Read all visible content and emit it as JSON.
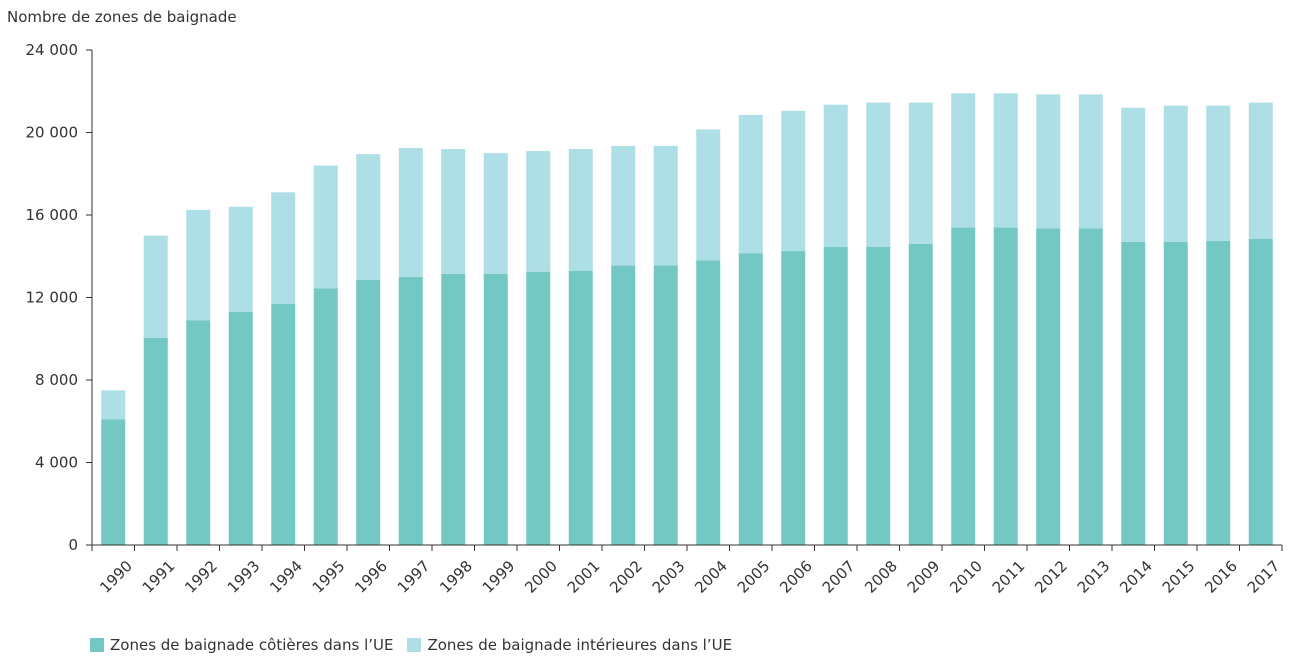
{
  "chart_data": {
    "type": "bar",
    "stacked": true,
    "title": "",
    "ylabel": "Nombre de zones de baignade",
    "xlabel": "",
    "ylim": [
      0,
      24000
    ],
    "yticks": [
      0,
      4000,
      8000,
      12000,
      16000,
      20000,
      24000
    ],
    "ytick_labels": [
      "0",
      "4 000",
      "8 000",
      "12 000",
      "16 000",
      "20 000",
      "24 000"
    ],
    "grid": false,
    "legend_position": "bottom-left",
    "categories": [
      "1990",
      "1991",
      "1992",
      "1993",
      "1994",
      "1995",
      "1996",
      "1997",
      "1998",
      "1999",
      "2000",
      "2001",
      "2002",
      "2003",
      "2004",
      "2005",
      "2006",
      "2007",
      "2008",
      "2009",
      "2010",
      "2011",
      "2012",
      "2013",
      "2014",
      "2015",
      "2016",
      "2017"
    ],
    "series": [
      {
        "name": "Zones de baignade côtières dans l’UE",
        "color": "#74c8c4",
        "values": [
          6100,
          10050,
          10900,
          11300,
          11700,
          12450,
          12850,
          13000,
          13150,
          13150,
          13250,
          13300,
          13550,
          13550,
          13800,
          14150,
          14250,
          14450,
          14450,
          14600,
          15400,
          15400,
          15350,
          15350,
          14700,
          14700,
          14750,
          14850
        ]
      },
      {
        "name": "Zones de baignade intérieures dans l’UE",
        "color": "#aedee6",
        "values": [
          1400,
          4950,
          5350,
          5100,
          5400,
          5950,
          6100,
          6250,
          6050,
          5850,
          5850,
          5900,
          5800,
          5800,
          6350,
          6700,
          6800,
          6900,
          7000,
          6850,
          6500,
          6500,
          6500,
          6500,
          6500,
          6600,
          6550,
          6600
        ]
      }
    ]
  }
}
